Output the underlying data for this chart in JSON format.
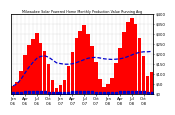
{
  "title": "Milwaukee Solar Powered Home Monthly Production Value Running Avg",
  "ylim": [
    0,
    400
  ],
  "bar_color": "#ff0000",
  "avg_line_color": "#0000cc",
  "dot_color": "#0000cc",
  "background_color": "#ffffff",
  "plot_bg": "#ffffff",
  "grid_color": "#aaaaaa",
  "ytick_vals": [
    0,
    50,
    100,
    150,
    200,
    250,
    300,
    350,
    400
  ],
  "values": [
    38,
    60,
    115,
    195,
    245,
    275,
    305,
    255,
    215,
    148,
    68,
    28,
    42,
    68,
    138,
    208,
    278,
    312,
    342,
    298,
    238,
    158,
    72,
    32,
    48,
    78,
    152,
    228,
    308,
    358,
    378,
    348,
    278,
    188,
    88,
    108
  ],
  "running_avg": [
    38,
    49,
    71,
    102,
    131,
    155,
    176,
    186,
    189,
    182,
    168,
    154,
    150,
    147,
    147,
    149,
    155,
    162,
    170,
    177,
    180,
    181,
    178,
    174,
    172,
    171,
    172,
    174,
    178,
    185,
    193,
    201,
    206,
    209,
    209,
    211
  ],
  "xtick_step": 3,
  "n_bars": 36
}
